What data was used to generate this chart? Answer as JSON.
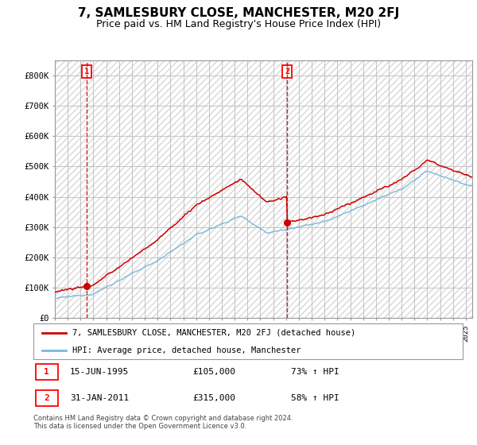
{
  "title": "7, SAMLESBURY CLOSE, MANCHESTER, M20 2FJ",
  "subtitle": "Price paid vs. HM Land Registry's House Price Index (HPI)",
  "ylim": [
    0,
    850000
  ],
  "yticks": [
    0,
    100000,
    200000,
    300000,
    400000,
    500000,
    600000,
    700000,
    800000
  ],
  "ytick_labels": [
    "£0",
    "£100K",
    "£200K",
    "£300K",
    "£400K",
    "£500K",
    "£600K",
    "£700K",
    "£800K"
  ],
  "xlim_start": 1993,
  "xlim_end": 2025.5,
  "sale1_date": 1995.46,
  "sale1_price": 105000,
  "sale2_date": 2011.08,
  "sale2_price": 315000,
  "hpi_color": "#7ab8d9",
  "price_color": "#cc0000",
  "background_color": "#f0f0f0",
  "hatch_color": "#d8d8d8",
  "legend_label1": "7, SAMLESBURY CLOSE, MANCHESTER, M20 2FJ (detached house)",
  "legend_label2": "HPI: Average price, detached house, Manchester",
  "footnote1": "Contains HM Land Registry data © Crown copyright and database right 2024.",
  "footnote2": "This data is licensed under the Open Government Licence v3.0.",
  "title_fontsize": 11,
  "subtitle_fontsize": 9,
  "tick_fontsize": 7.5,
  "legend_fontsize": 8
}
